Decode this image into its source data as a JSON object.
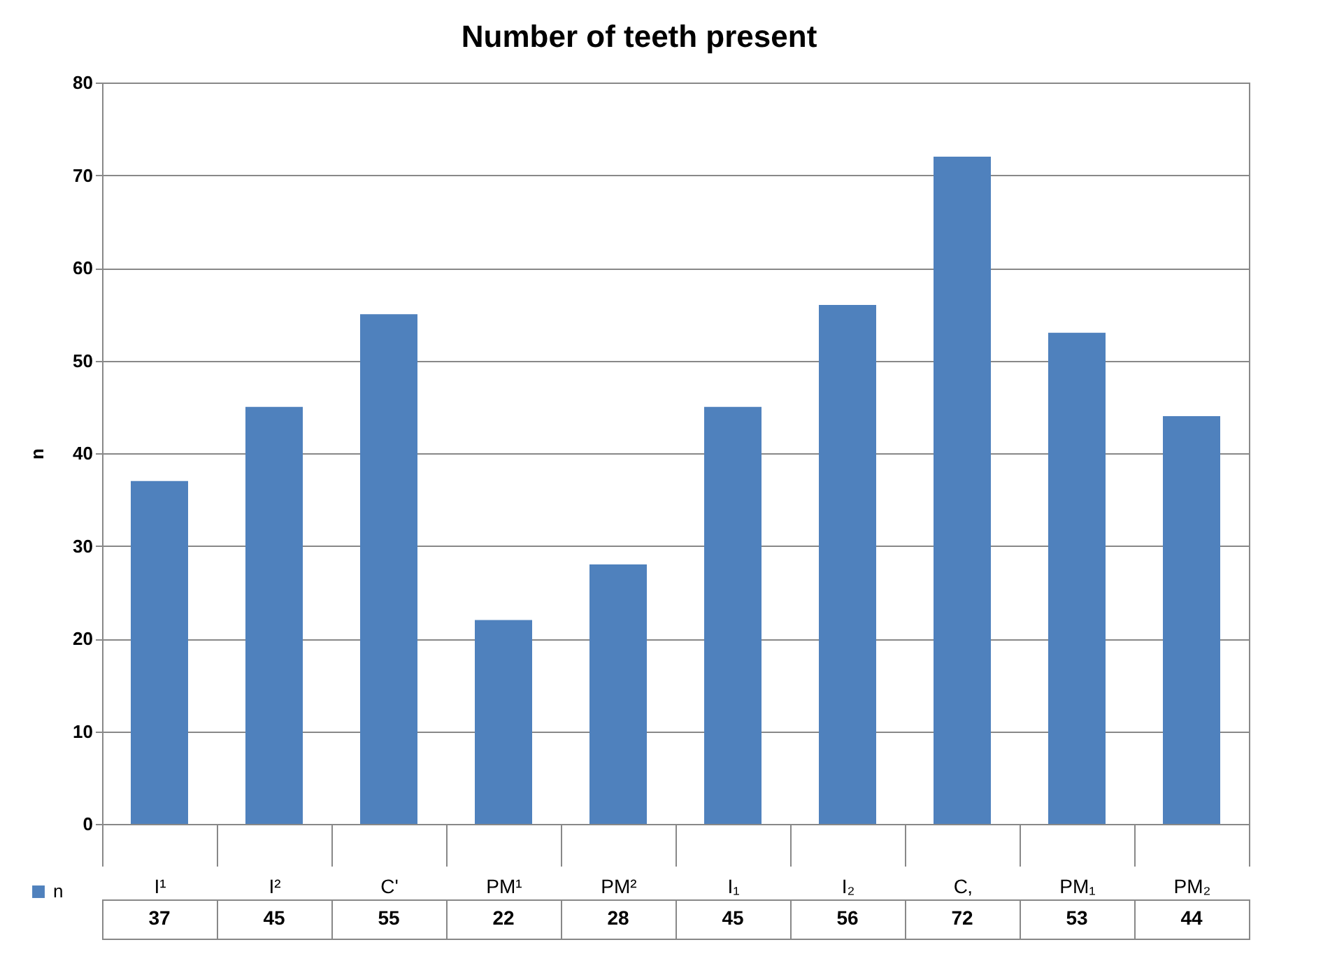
{
  "chart_data": {
    "type": "bar",
    "title": "Number of teeth present",
    "ylabel": "n",
    "categories": [
      "I¹",
      "I²",
      "C'",
      "PM¹",
      "PM²",
      "I₁",
      "I₂",
      "C‚",
      "PM₁",
      "PM₂"
    ],
    "series": [
      {
        "name": "n",
        "color": "#4f81bd",
        "values": [
          37,
          45,
          55,
          22,
          28,
          45,
          56,
          72,
          53,
          44
        ]
      }
    ],
    "ylim": [
      0,
      80
    ],
    "yticks": [
      0,
      10,
      20,
      30,
      40,
      50,
      60,
      70,
      80
    ],
    "grid": "y",
    "data_labels": true,
    "legend": "bottom left"
  }
}
